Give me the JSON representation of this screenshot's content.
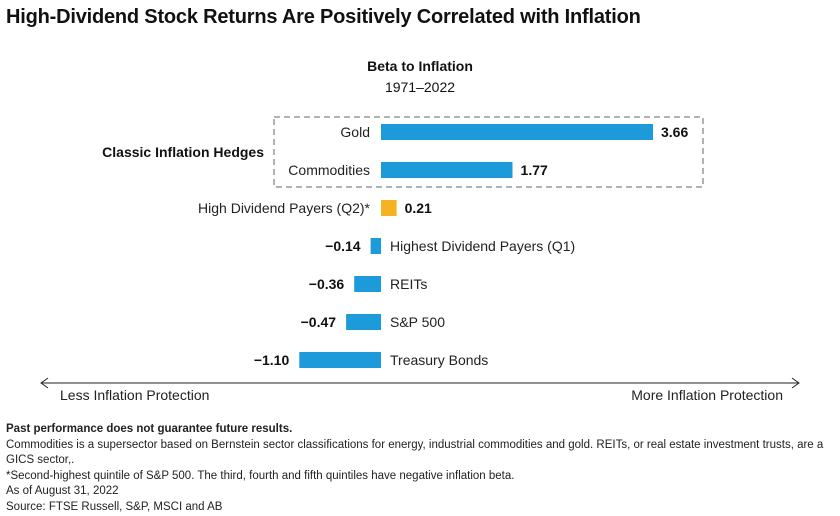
{
  "title": "High-Dividend Stock Returns Are Positively Correlated with Inflation",
  "colors": {
    "bar_default": "#1d9ad9",
    "bar_highlight": "#f6b321",
    "group_border": "#999999",
    "axis": "#222222"
  },
  "chart_data": {
    "type": "bar",
    "orientation": "horizontal",
    "title": "Beta to Inflation",
    "subtitle": "1971–2022",
    "categories": [
      "Gold",
      "Commodities",
      "High Dividend Payers (Q2)*",
      "Highest Dividend Payers (Q1)",
      "REITs",
      "S&P 500",
      "Treasury Bonds"
    ],
    "values": [
      3.66,
      1.77,
      0.21,
      -0.14,
      -0.36,
      -0.47,
      -1.1
    ],
    "value_labels": [
      "3.66",
      "1.77",
      "0.21",
      "−0.14",
      "−0.36",
      "−0.47",
      "−1.10"
    ],
    "highlight": "High Dividend Payers (Q2)*",
    "group": {
      "label": "Classic Inflation Hedges",
      "members": [
        "Gold",
        "Commodities"
      ]
    },
    "axis": {
      "left_label": "Less Inflation Protection",
      "right_label": "More Inflation Protection"
    },
    "xlim": [
      -1.1,
      3.66
    ],
    "grid": false,
    "legend": "none"
  },
  "footnotes": {
    "disclaimer": "Past performance does not guarantee future results.",
    "lines": [
      "Commodities is a supersector based on Bernstein sector classifications for energy, industrial commodities and gold. REITs, or real estate investment trusts, are a GICS sector,.",
      "*Second-highest quintile of S&P 500. The third, fourth and fifth quintiles have negative inflation beta.",
      "As of August 31, 2022",
      "Source: FTSE Russell, S&P, MSCI and AB"
    ]
  }
}
